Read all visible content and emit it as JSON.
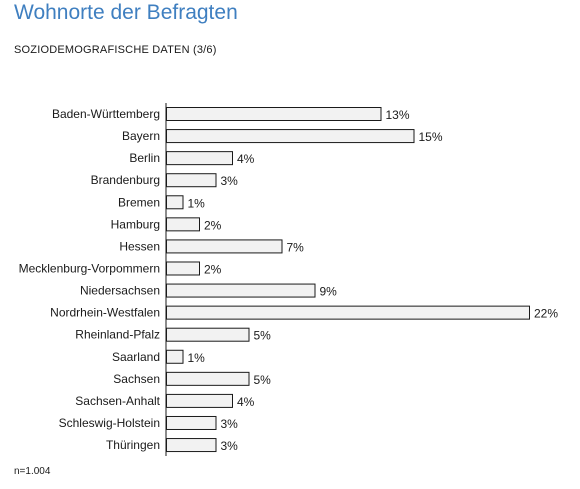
{
  "header": {
    "title": "Wohnorte der Befragten",
    "subtitle": "SOZIODEMOGRAFISCHE DATEN (3/6)"
  },
  "footer": {
    "note": "n=1.004"
  },
  "colors": {
    "title": "#3f7fc0",
    "bar_fill": "#f2f2f2",
    "bar_stroke": "#1a1a1a"
  },
  "chart_data": {
    "type": "bar",
    "orientation": "horizontal",
    "categories": [
      "Baden-Württemberg",
      "Bayern",
      "Berlin",
      "Brandenburg",
      "Bremen",
      "Hamburg",
      "Hessen",
      "Mecklenburg-Vorpommern",
      "Niedersachsen",
      "Nordrhein-Westfalen",
      "Rheinland-Pfalz",
      "Saarland",
      "Sachsen",
      "Sachsen-Anhalt",
      "Schleswig-Holstein",
      "Thüringen"
    ],
    "values": [
      13,
      15,
      4,
      3,
      1,
      2,
      7,
      2,
      9,
      22,
      5,
      1,
      5,
      4,
      3,
      3
    ],
    "value_labels": [
      "13%",
      "15%",
      "4%",
      "3%",
      "1%",
      "2%",
      "7%",
      "2%",
      "9%",
      "22%",
      "5%",
      "1%",
      "5%",
      "4%",
      "3%",
      "3%"
    ],
    "unit": "%",
    "xlim": [
      0,
      22
    ],
    "grid": false,
    "legend": "none"
  }
}
